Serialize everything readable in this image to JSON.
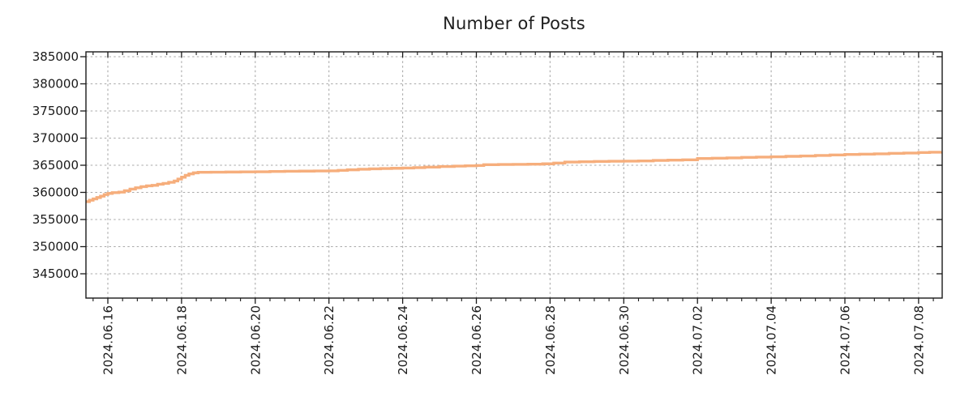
{
  "title": "Number of Posts",
  "chart_data": {
    "type": "line",
    "title": "Number of Posts",
    "xlabel": "",
    "ylabel": "",
    "legend": "none",
    "grid": "dashed gray, both axes, major ticks only",
    "background_color": "#ffffff",
    "frame_color": "#1a1a1a",
    "grid_color": "#aaaaaa",
    "x_axis": {
      "unit": "days since 2024-06-16 00:00",
      "tick_positions_days": [
        0,
        2,
        4,
        6,
        8,
        10,
        12,
        14,
        16,
        18,
        20,
        22
      ],
      "tick_labels": [
        "2024.06.16",
        "2024.06.18",
        "2024.06.20",
        "2024.06.22",
        "2024.06.24",
        "2024.06.26",
        "2024.06.28",
        "2024.06.30",
        "2024.07.02",
        "2024.07.04",
        "2024.07.06",
        "2024.07.08"
      ],
      "tick_label_rotation_deg": 90,
      "minor_tick_interval_days": 0.4,
      "xlim_days": [
        -0.62,
        22.64
      ]
    },
    "y_axis": {
      "ticks": [
        345000,
        350000,
        355000,
        360000,
        365000,
        370000,
        375000,
        380000,
        385000
      ],
      "tick_labels": [
        "345000",
        "350000",
        "355000",
        "360000",
        "365000",
        "370000",
        "375000",
        "380000",
        "385000"
      ],
      "ylim": [
        340200,
        385900
      ]
    },
    "series": [
      {
        "name": "Number of Posts",
        "color": "#f6ae7c",
        "line_width": 3.4,
        "interpolation": "step-after",
        "points_day_value": [
          [
            -0.62,
            358300
          ],
          [
            -0.5,
            358550
          ],
          [
            -0.4,
            358800
          ],
          [
            -0.3,
            359050
          ],
          [
            -0.2,
            359300
          ],
          [
            -0.1,
            359600
          ],
          [
            0,
            359800
          ],
          [
            0.12,
            359950
          ],
          [
            0.3,
            360050
          ],
          [
            0.45,
            360300
          ],
          [
            0.6,
            360600
          ],
          [
            0.75,
            360850
          ],
          [
            0.9,
            361050
          ],
          [
            1.05,
            361200
          ],
          [
            1.2,
            361300
          ],
          [
            1.35,
            361500
          ],
          [
            1.5,
            361650
          ],
          [
            1.65,
            361850
          ],
          [
            1.8,
            362100
          ],
          [
            1.9,
            362450
          ],
          [
            2,
            362800
          ],
          [
            2.1,
            363150
          ],
          [
            2.2,
            363400
          ],
          [
            2.32,
            363600
          ],
          [
            2.45,
            363700
          ],
          [
            2.8,
            363720
          ],
          [
            3.2,
            363750
          ],
          [
            3.6,
            363780
          ],
          [
            4,
            363800
          ],
          [
            4.4,
            363850
          ],
          [
            4.8,
            363890
          ],
          [
            5.2,
            363920
          ],
          [
            5.6,
            363940
          ],
          [
            6,
            363960
          ],
          [
            6.25,
            364060
          ],
          [
            6.5,
            364160
          ],
          [
            6.8,
            364260
          ],
          [
            7.1,
            364340
          ],
          [
            7.4,
            364400
          ],
          [
            7.7,
            364440
          ],
          [
            8,
            364480
          ],
          [
            8.3,
            364560
          ],
          [
            8.6,
            364660
          ],
          [
            9,
            364760
          ],
          [
            9.4,
            364840
          ],
          [
            9.7,
            364900
          ],
          [
            10,
            364950
          ],
          [
            10.2,
            365100
          ],
          [
            10.6,
            365140
          ],
          [
            11,
            365160
          ],
          [
            11.4,
            365200
          ],
          [
            11.8,
            365260
          ],
          [
            12.1,
            365400
          ],
          [
            12.4,
            365580
          ],
          [
            12.8,
            365650
          ],
          [
            13.2,
            365700
          ],
          [
            13.6,
            365730
          ],
          [
            14,
            365760
          ],
          [
            14.4,
            365800
          ],
          [
            14.8,
            365890
          ],
          [
            15.2,
            365940
          ],
          [
            15.6,
            366000
          ],
          [
            16,
            366240
          ],
          [
            16.4,
            366300
          ],
          [
            16.8,
            366350
          ],
          [
            17.2,
            366440
          ],
          [
            17.6,
            366500
          ],
          [
            18,
            366560
          ],
          [
            18.4,
            366640
          ],
          [
            18.8,
            366700
          ],
          [
            19.2,
            366800
          ],
          [
            19.6,
            366890
          ],
          [
            20,
            366990
          ],
          [
            20.4,
            367040
          ],
          [
            20.8,
            367100
          ],
          [
            21.2,
            367190
          ],
          [
            21.6,
            367250
          ],
          [
            22,
            367340
          ],
          [
            22.3,
            367400
          ],
          [
            22.62,
            367490
          ]
        ]
      }
    ]
  }
}
